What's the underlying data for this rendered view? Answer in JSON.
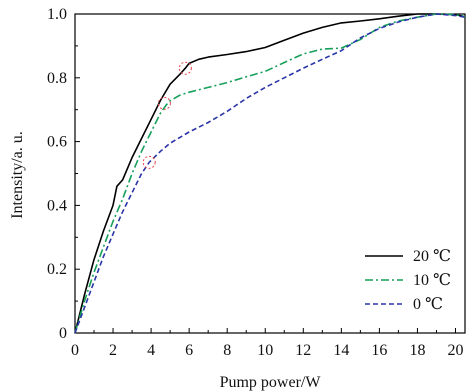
{
  "chart_data": {
    "type": "line",
    "title": "",
    "xlabel": "Pump power/W",
    "ylabel": "Intensity/a. u.",
    "xlim": [
      0,
      20.5
    ],
    "ylim": [
      0,
      1.0
    ],
    "x_ticks": [
      "0",
      "2",
      "4",
      "6",
      "8",
      "10",
      "12",
      "14",
      "16",
      "18",
      "20"
    ],
    "y_ticks": [
      "0",
      "0.2",
      "0.4",
      "0.6",
      "0.8",
      "1.0"
    ],
    "grid": false,
    "legend_position": "bottom-right",
    "series": [
      {
        "name": "20 ℃",
        "color": "#000000",
        "dash": "solid",
        "x": [
          0,
          0.5,
          1,
          1.5,
          2,
          2.2,
          2.5,
          3,
          3.5,
          4,
          4.5,
          5,
          5.5,
          5.8,
          6,
          6.5,
          7,
          8,
          9,
          10,
          11,
          12,
          13,
          14,
          15,
          16,
          17,
          18,
          19,
          20,
          20.5
        ],
        "y": [
          0,
          0.12,
          0.23,
          0.32,
          0.4,
          0.46,
          0.48,
          0.55,
          0.61,
          0.67,
          0.73,
          0.78,
          0.81,
          0.83,
          0.845,
          0.858,
          0.865,
          0.873,
          0.882,
          0.895,
          0.918,
          0.94,
          0.958,
          0.972,
          0.978,
          0.985,
          0.993,
          1.0,
          1.0,
          0.998,
          0.992
        ]
      },
      {
        "name": "10 ℃",
        "color": "#16a05a",
        "dash": "dashdot",
        "x": [
          0,
          0.5,
          1,
          1.5,
          2,
          2.5,
          3,
          3.5,
          4,
          4.5,
          4.8,
          5,
          5.5,
          6,
          7,
          8,
          9,
          10,
          11,
          12,
          13,
          14,
          15,
          16,
          17,
          18,
          19,
          20,
          20.5
        ],
        "y": [
          0,
          0.1,
          0.19,
          0.27,
          0.35,
          0.42,
          0.5,
          0.57,
          0.63,
          0.69,
          0.715,
          0.728,
          0.745,
          0.755,
          0.77,
          0.785,
          0.803,
          0.82,
          0.848,
          0.875,
          0.89,
          0.893,
          0.92,
          0.958,
          0.978,
          0.99,
          1.0,
          0.998,
          0.992
        ]
      },
      {
        "name": "0 ℃",
        "color": "#2b35a8",
        "dash": "dashed",
        "x": [
          0,
          0.5,
          1,
          1.5,
          2,
          2.5,
          3,
          3.5,
          3.9,
          4.5,
          5,
          6,
          7,
          8,
          9,
          10,
          11,
          12,
          13,
          14,
          15,
          16,
          17,
          18,
          19,
          20,
          20.5
        ],
        "y": [
          0,
          0.08,
          0.16,
          0.24,
          0.31,
          0.38,
          0.44,
          0.5,
          0.535,
          0.57,
          0.595,
          0.63,
          0.66,
          0.695,
          0.735,
          0.77,
          0.8,
          0.83,
          0.858,
          0.885,
          0.925,
          0.955,
          0.975,
          0.99,
          1.0,
          0.995,
          0.99
        ]
      }
    ],
    "annotations": [
      {
        "type": "circle",
        "color": "#e8424a",
        "x": 5.8,
        "y": 0.83
      },
      {
        "type": "circle",
        "color": "#e8424a",
        "x": 4.7,
        "y": 0.72
      },
      {
        "type": "circle",
        "color": "#e8424a",
        "x": 3.9,
        "y": 0.535
      }
    ]
  }
}
